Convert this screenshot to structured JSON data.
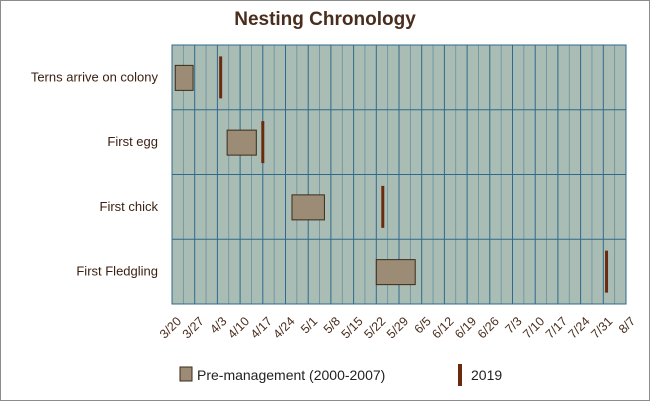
{
  "chart_data": {
    "type": "gantt",
    "title": "Nesting Chronology",
    "categories": [
      "Terns arrive on colony",
      "First egg",
      "First chick",
      "First Fledgling"
    ],
    "x_ticks": [
      "3/20",
      "3/27",
      "4/3",
      "4/10",
      "4/17",
      "4/24",
      "5/1",
      "5/8",
      "5/15",
      "5/22",
      "5/29",
      "6/5",
      "6/12",
      "6/19",
      "6/26",
      "7/3",
      "7/10",
      "7/17",
      "7/24",
      "7/31",
      "8/7"
    ],
    "x_range_days": [
      0,
      140
    ],
    "x_origin": "3/20",
    "series": [
      {
        "name": "Pre-management (2000-2007)",
        "kind": "range",
        "color": "#9c8c76",
        "ranges": [
          [
            1,
            6.5
          ],
          [
            17,
            26
          ],
          [
            37,
            47
          ],
          [
            63,
            75
          ]
        ]
      },
      {
        "name": "2019",
        "kind": "marker",
        "color": "#6b2a0e",
        "days": [
          15,
          28,
          65,
          134
        ]
      }
    ],
    "grid": true,
    "legend": "bottom"
  },
  "legend": {
    "pre_label": "Pre-management (2000-2007)",
    "year_label": "2019"
  }
}
